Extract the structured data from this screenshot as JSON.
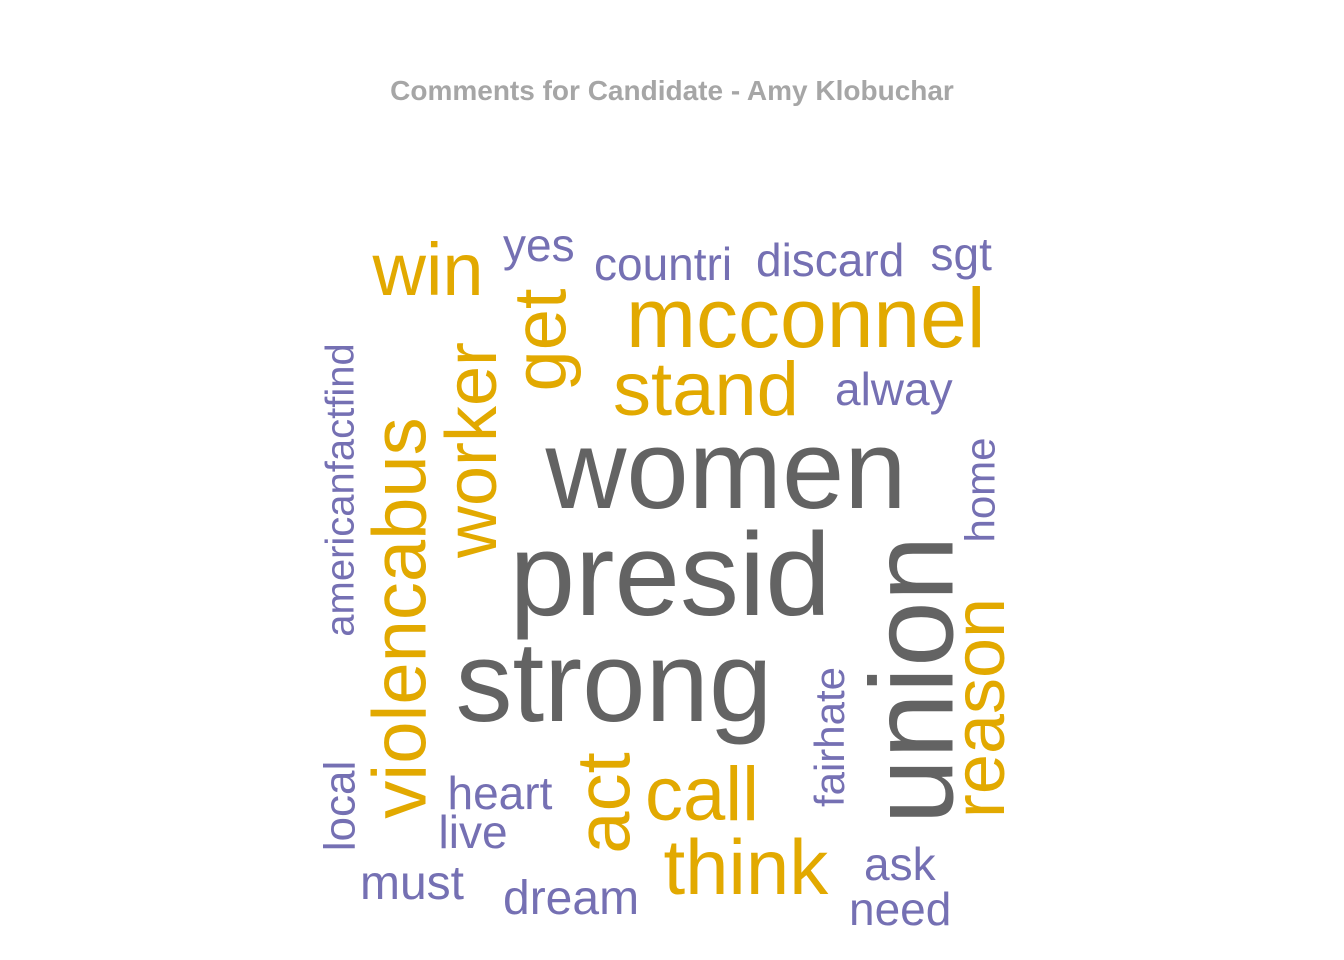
{
  "title": "Comments for Candidate - Amy Klobuchar",
  "chart_data": {
    "type": "wordcloud",
    "title": "Comments for Candidate - Amy Klobuchar",
    "colors": {
      "tier1": "#636363",
      "tier2": "#e2a900",
      "tier3": "#7570b3"
    },
    "words": [
      {
        "text": "women",
        "weight": 100,
        "tier": "tier1",
        "rotated": false
      },
      {
        "text": "presid",
        "weight": 98,
        "tier": "tier1",
        "rotated": false
      },
      {
        "text": "strong",
        "weight": 96,
        "tier": "tier1",
        "rotated": false
      },
      {
        "text": "union",
        "weight": 95,
        "tier": "tier1",
        "rotated": true
      },
      {
        "text": "mcconnel",
        "weight": 70,
        "tier": "tier2",
        "rotated": false
      },
      {
        "text": "violencabus",
        "weight": 68,
        "tier": "tier2",
        "rotated": true
      },
      {
        "text": "worker",
        "weight": 66,
        "tier": "tier2",
        "rotated": true
      },
      {
        "text": "win",
        "weight": 66,
        "tier": "tier2",
        "rotated": false
      },
      {
        "text": "get",
        "weight": 66,
        "tier": "tier2",
        "rotated": true
      },
      {
        "text": "stand",
        "weight": 64,
        "tier": "tier2",
        "rotated": false
      },
      {
        "text": "reason",
        "weight": 64,
        "tier": "tier2",
        "rotated": true
      },
      {
        "text": "think",
        "weight": 64,
        "tier": "tier2",
        "rotated": false
      },
      {
        "text": "call",
        "weight": 64,
        "tier": "tier2",
        "rotated": false
      },
      {
        "text": "act",
        "weight": 62,
        "tier": "tier2",
        "rotated": true
      },
      {
        "text": "americanfactfind",
        "weight": 40,
        "tier": "tier3",
        "rotated": true
      },
      {
        "text": "discard",
        "weight": 40,
        "tier": "tier3",
        "rotated": false
      },
      {
        "text": "countri",
        "weight": 40,
        "tier": "tier3",
        "rotated": false
      },
      {
        "text": "yes",
        "weight": 40,
        "tier": "tier3",
        "rotated": false
      },
      {
        "text": "sgt",
        "weight": 40,
        "tier": "tier3",
        "rotated": false
      },
      {
        "text": "alway",
        "weight": 40,
        "tier": "tier3",
        "rotated": false
      },
      {
        "text": "home",
        "weight": 40,
        "tier": "tier3",
        "rotated": true
      },
      {
        "text": "fairhate",
        "weight": 40,
        "tier": "tier3",
        "rotated": true
      },
      {
        "text": "local",
        "weight": 40,
        "tier": "tier3",
        "rotated": true
      },
      {
        "text": "heart",
        "weight": 40,
        "tier": "tier3",
        "rotated": false
      },
      {
        "text": "live",
        "weight": 40,
        "tier": "tier3",
        "rotated": false
      },
      {
        "text": "must",
        "weight": 40,
        "tier": "tier3",
        "rotated": false
      },
      {
        "text": "dream",
        "weight": 40,
        "tier": "tier3",
        "rotated": false
      },
      {
        "text": "ask",
        "weight": 40,
        "tier": "tier3",
        "rotated": false
      },
      {
        "text": "need",
        "weight": 40,
        "tier": "tier3",
        "rotated": false
      }
    ]
  }
}
